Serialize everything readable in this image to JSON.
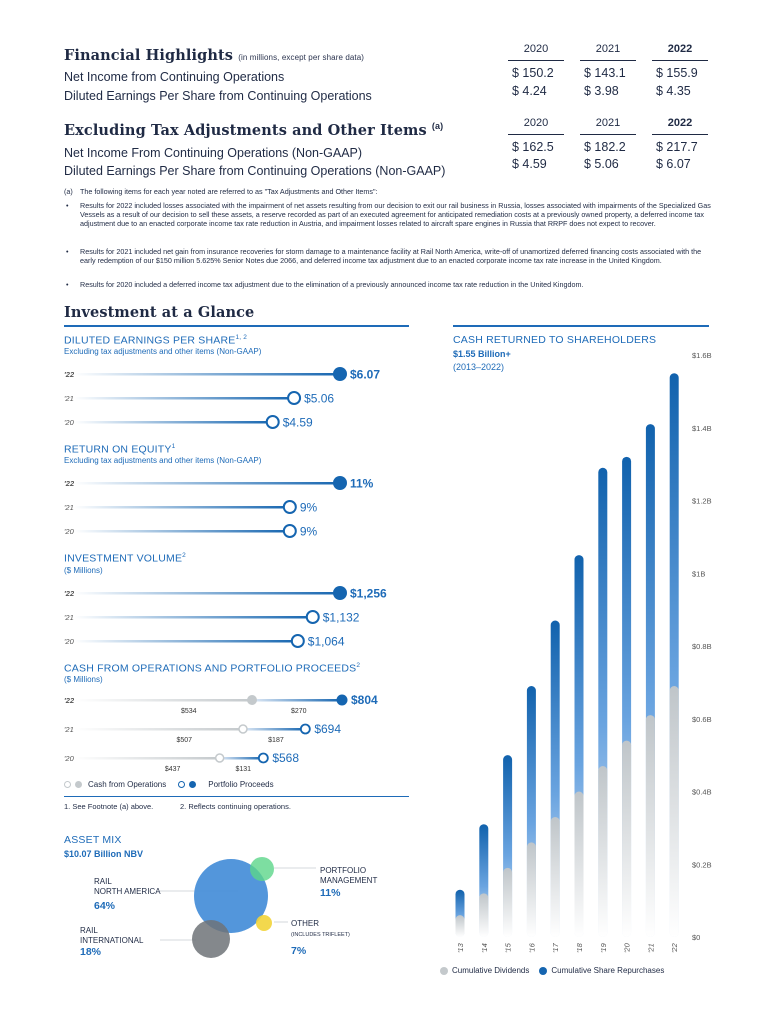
{
  "highlights": {
    "title": "Financial Highlights",
    "subtitle": "(in millions, except per share data)",
    "years": [
      "2020",
      "2021",
      "2022"
    ],
    "rows": [
      {
        "label": "Net Income from Continuing Operations",
        "values": [
          "$ 150.2",
          "$ 143.1",
          "$ 155.9"
        ]
      },
      {
        "label": "Diluted Earnings Per Share from Continuing Operations",
        "values": [
          "$  4.24",
          "$  3.98",
          "$  4.35"
        ]
      }
    ]
  },
  "excluding": {
    "title": "Excluding Tax Adjustments and Other Items",
    "title_note": "(a)",
    "years": [
      "2020",
      "2021",
      "2022"
    ],
    "rows": [
      {
        "label": "Net Income From Continuing Operations (Non-GAAP)",
        "values": [
          "$ 162.5",
          "$ 182.2",
          "$ 217.7"
        ]
      },
      {
        "label": "Diluted Earnings Per Share from Continuing Operations (Non-GAAP)",
        "values": [
          "$  4.59",
          "$  5.06",
          "$  6.07"
        ]
      }
    ]
  },
  "footnotes": {
    "marker": "(a)",
    "intro": "The following items for each year noted are referred to as \"Tax Adjustments and Other Items\":",
    "bullet": "•",
    "items": [
      "Results for 2022 included losses associated with the impairment of net assets resulting from our decision to exit our rail business in Russia, losses associated with impairments of the Specialized Gas Vessels as a result of our decision to sell these assets, a reserve recorded as part of an executed agreement for anticipated remediation costs at a previously owned property, a deferred income tax adjustment due to an enacted corporate income tax rate reduction in Austria, and impairment losses related to aircraft spare engines in Russia that RRPF does not expect to recover.",
      "Results for 2021 included net gain from insurance recoveries for storm damage to a maintenance facility at Rail North America, write-off of unamortized deferred financing costs associated with the early redemption of our $150 million 5.625% Senior Notes due 2066, and deferred income tax adjustment due to an enacted corporate income tax rate increase in the United Kingdom.",
      "Results for 2020 included a deferred income tax adjustment due to the elimination of a previously announced income tax rate reduction in the United Kingdom."
    ]
  },
  "investment": {
    "title": "Investment at a Glance",
    "eps": {
      "title": "DILUTED EARNINGS PER SHARE",
      "sup": "1, 2",
      "subtitle": "Excluding tax adjustments and other items (Non-GAAP)",
      "rows": [
        {
          "year": "'22",
          "label": "$6.07",
          "value": 6.07
        },
        {
          "year": "'21",
          "label": "$5.06",
          "value": 5.06
        },
        {
          "year": "'20",
          "label": "$4.59",
          "value": 4.59
        }
      ]
    },
    "roe": {
      "title": "RETURN ON EQUITY",
      "sup": "1",
      "subtitle": "Excluding tax adjustments and other items (Non-GAAP)",
      "rows": [
        {
          "year": "'22",
          "label": "11%",
          "value": 11
        },
        {
          "year": "'21",
          "label": "9%",
          "value": 9
        },
        {
          "year": "'20",
          "label": "9%",
          "value": 9
        }
      ]
    },
    "volume": {
      "title": "INVESTMENT  VOLUME",
      "sup": "2",
      "subtitle": "($ Millions)",
      "rows": [
        {
          "year": "'22",
          "label": "$1,256",
          "value": 1256
        },
        {
          "year": "'21",
          "label": "$1,132",
          "value": 1132
        },
        {
          "year": "'20",
          "label": "$1,064",
          "value": 1064
        }
      ]
    },
    "cash_ops": {
      "title": "CASH FROM OPERATIONS AND PORTFOLIO PROCEEDS",
      "sup": "2",
      "subtitle": "($ Millions)",
      "rows": [
        {
          "year": "'22",
          "total_label": "$804",
          "ops_label": "$534",
          "proceeds_label": "$270",
          "ops": 534,
          "proceeds": 270
        },
        {
          "year": "'21",
          "total_label": "$694",
          "ops_label": "$507",
          "proceeds_label": "$187",
          "ops": 507,
          "proceeds": 187
        },
        {
          "year": "'20",
          "total_label": "$568",
          "ops_label": "$437",
          "proceeds_label": "$131",
          "ops": 437,
          "proceeds": 131
        }
      ],
      "legend_ops": "Cash from Operations",
      "legend_proceeds": "Portfolio Proceeds"
    },
    "notes": {
      "note1": "1. See Footnote (a) above.",
      "note2": "2. Reflects continuing operations."
    }
  },
  "asset_mix": {
    "title": "ASSET MIX",
    "subtitle": "$10.07 Billion NBV",
    "segments": [
      {
        "label": "RAIL\nNORTH AMERICA",
        "pct": "64%",
        "value": 64,
        "color": "#4a90d9"
      },
      {
        "label": "RAIL\nINTERNATIONAL",
        "pct": "18%",
        "value": 18,
        "color": "#6e7378"
      },
      {
        "label": "PORTFOLIO\nMANAGEMENT",
        "pct": "11%",
        "value": 11,
        "color": "#5cd68a"
      },
      {
        "label": "OTHER",
        "note": "(INCLUDES TRIFLEET)",
        "pct": "7%",
        "value": 7,
        "color": "#f2d43a"
      }
    ]
  },
  "chart_data": {
    "type": "bar",
    "title": "CASH RETURNED TO SHAREHOLDERS",
    "subtitle": "$1.55 Billion+",
    "subtitle2": "(2013–2022)",
    "categories": [
      "'13",
      "'14",
      "'15",
      "'16",
      "'17",
      "'18",
      "'19",
      "'20",
      "'21",
      "'22"
    ],
    "series": [
      {
        "name": "Cumulative Dividends",
        "color": "#c4c9cc",
        "values": [
          0.06,
          0.12,
          0.19,
          0.26,
          0.33,
          0.4,
          0.47,
          0.54,
          0.61,
          0.69
        ]
      },
      {
        "name": "Cumulative Share Repurchases",
        "color": "#1565b0",
        "values": [
          0.13,
          0.31,
          0.5,
          0.69,
          0.87,
          1.05,
          1.29,
          1.32,
          1.41,
          1.55
        ]
      }
    ],
    "yticks": [
      "$0",
      "$0.2B",
      "$0.4B",
      "$0.6B",
      "$0.8B",
      "$1B",
      "$1.2B",
      "$1.4B",
      "$1.6B"
    ],
    "ylim": [
      0,
      1.6
    ],
    "stacked": false
  }
}
